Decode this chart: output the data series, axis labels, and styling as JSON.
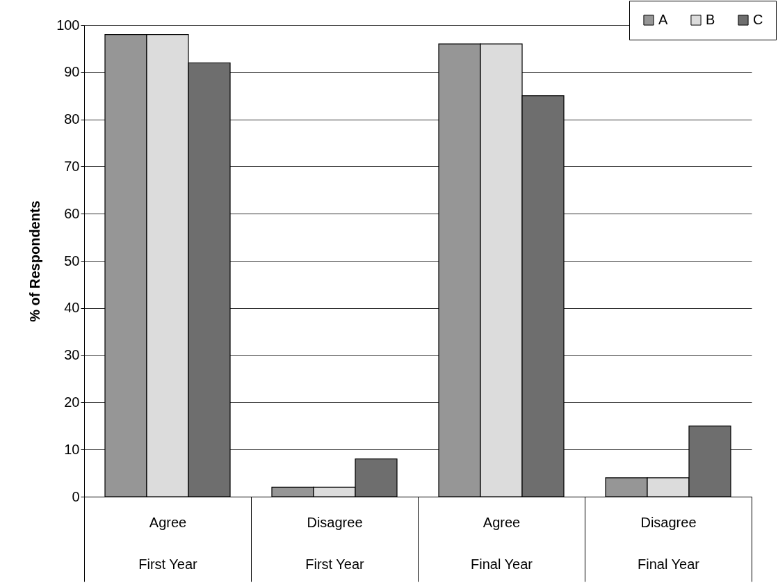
{
  "chart_data": {
    "type": "bar",
    "ylabel": "% of Respondents",
    "categories": [
      "Agree\nFirst Year",
      "Disagree\nFirst Year",
      "Agree\nFinal Year",
      "Disagree\nFinal Year"
    ],
    "series": [
      {
        "name": "A",
        "color": "#969696",
        "values": [
          98,
          2,
          96,
          4
        ]
      },
      {
        "name": "B",
        "color": "#dcdcdc",
        "values": [
          98,
          2,
          96,
          4
        ]
      },
      {
        "name": "C",
        "color": "#6e6e6e",
        "values": [
          92,
          8,
          85,
          15
        ]
      }
    ],
    "ylim": [
      0,
      100
    ],
    "yticks": [
      0,
      10,
      20,
      30,
      40,
      50,
      60,
      70,
      80,
      90,
      100
    ],
    "grid": "y",
    "legend": "top right"
  }
}
